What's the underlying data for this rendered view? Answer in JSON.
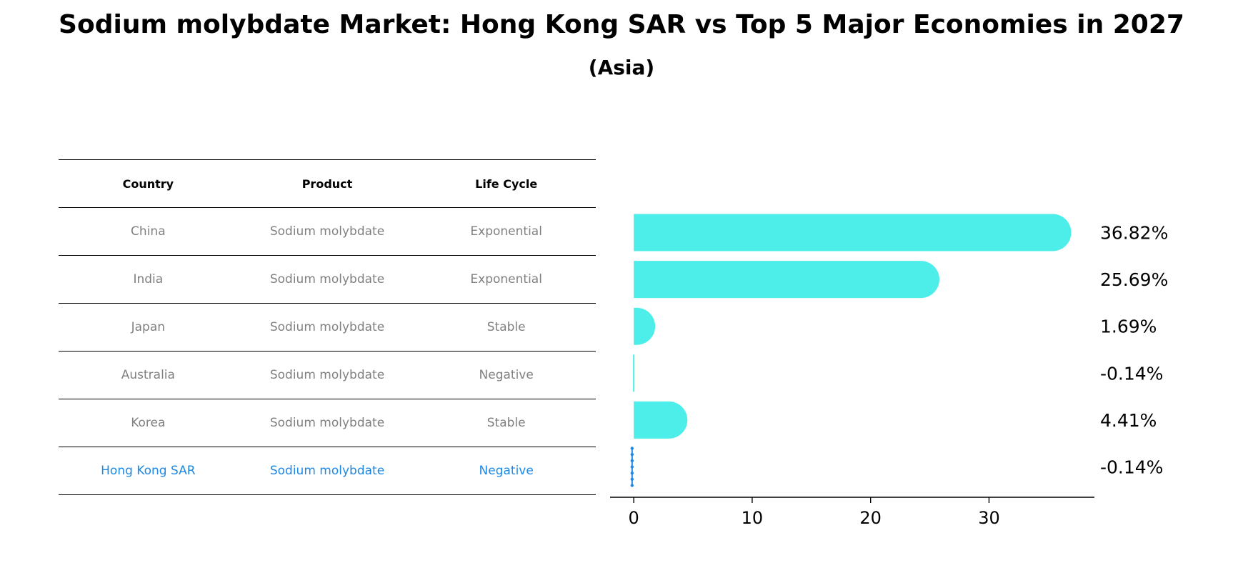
{
  "chart_data": {
    "type": "bar",
    "title": "Sodium molybdate Market: Hong Kong SAR vs Top 5 Major Economies in 2027",
    "subtitle": "(Asia)",
    "table": {
      "headers": [
        "Country",
        "Product",
        "Life Cycle"
      ],
      "rows": [
        [
          "China",
          "Sodium molybdate",
          "Exponential"
        ],
        [
          "India",
          "Sodium molybdate",
          "Exponential"
        ],
        [
          "Japan",
          "Sodium molybdate",
          "Stable"
        ],
        [
          "Australia",
          "Sodium molybdate",
          "Negative"
        ],
        [
          "Korea",
          "Sodium molybdate",
          "Stable"
        ],
        [
          "Hong Kong SAR",
          "Sodium molybdate",
          "Negative"
        ]
      ],
      "highlight_row": 5
    },
    "categories": [
      "China",
      "India",
      "Japan",
      "Australia",
      "Korea",
      "Hong Kong SAR"
    ],
    "values": [
      36.82,
      25.69,
      1.69,
      -0.14,
      4.41,
      -0.14
    ],
    "value_labels": [
      "36.82%",
      "25.69%",
      "1.69%",
      "-0.14%",
      "4.41%",
      "-0.14%"
    ],
    "xticks": [
      0,
      10,
      20,
      30
    ],
    "xlim": [
      -2,
      38.9
    ],
    "colors": {
      "bar": "#4deeea",
      "highlight": "#1e88e5"
    }
  }
}
